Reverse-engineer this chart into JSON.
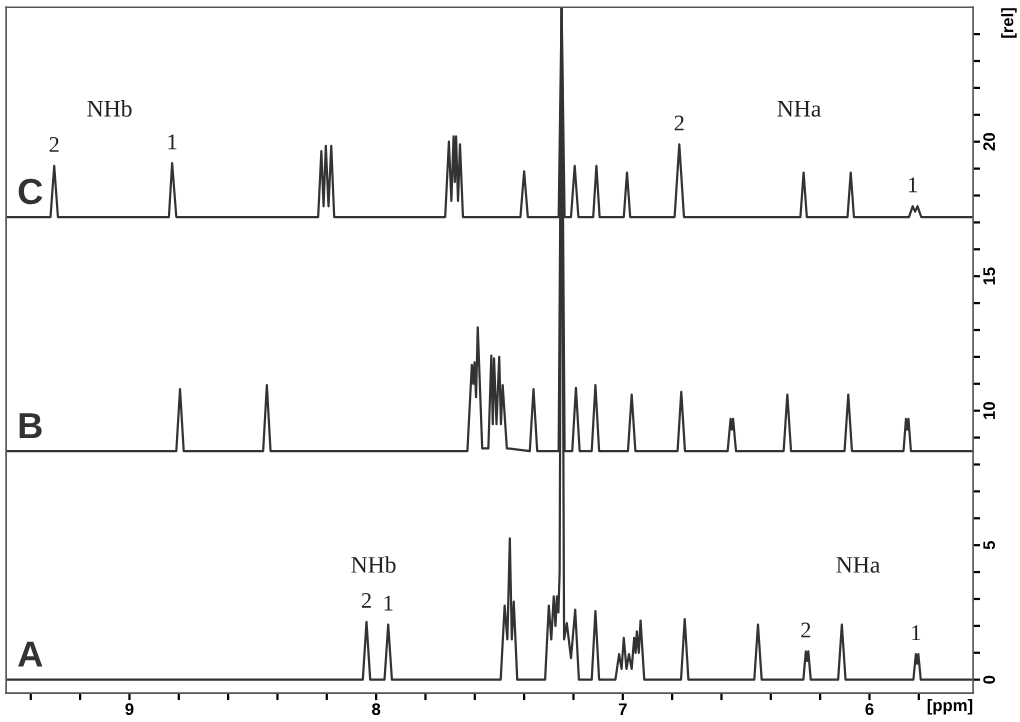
{
  "chart_data": {
    "type": "line",
    "xlabel": "[ppm]",
    "ylabel": "[rel]",
    "xlim": [
      9.5,
      5.58
    ],
    "ylim": [
      -0.5,
      25
    ],
    "xticks": [
      {
        "value": 9.4,
        "label": null
      },
      {
        "value": 9.2,
        "label": null
      },
      9,
      {
        "value": 8.8,
        "label": null
      },
      {
        "value": 8.6,
        "label": null
      },
      {
        "value": 8.4,
        "label": null
      },
      {
        "value": 8.2,
        "label": null
      },
      8,
      {
        "value": 7.8,
        "label": null
      },
      {
        "value": 7.6,
        "label": null
      },
      {
        "value": 7.4,
        "label": null
      },
      {
        "value": 7.2,
        "label": null
      },
      7,
      {
        "value": 6.8,
        "label": null
      },
      {
        "value": 6.6,
        "label": null
      },
      {
        "value": 6.4,
        "label": null
      },
      {
        "value": 6.2,
        "label": null
      },
      6,
      {
        "value": 5.8,
        "label": null
      }
    ],
    "yticks": [
      0,
      {
        "value": 1,
        "label": null
      },
      {
        "value": 2,
        "label": null
      },
      {
        "value": 3,
        "label": null
      },
      {
        "value": 4,
        "label": null
      },
      5,
      {
        "value": 6,
        "label": null
      },
      {
        "value": 7,
        "label": null
      },
      {
        "value": 8,
        "label": null
      },
      {
        "value": 9,
        "label": null
      },
      10,
      {
        "value": 11,
        "label": null
      },
      {
        "value": 12,
        "label": null
      },
      {
        "value": 13,
        "label": null
      },
      {
        "value": 14,
        "label": null
      },
      15,
      {
        "value": 16,
        "label": null
      },
      {
        "value": 17,
        "label": null
      },
      {
        "value": 18,
        "label": null
      },
      {
        "value": 19,
        "label": null
      },
      20,
      {
        "value": 21,
        "label": null
      },
      {
        "value": 22,
        "label": null
      },
      {
        "value": 23,
        "label": null
      },
      {
        "value": 24,
        "label": null
      }
    ],
    "grid": false,
    "legend": false,
    "marker": "none",
    "line_style": "solid",
    "series": [
      {
        "name": "C",
        "color": "#333333",
        "x": [
          9.5,
          9.32,
          9.305,
          9.29,
          8.84,
          8.827,
          8.81,
          8.235,
          8.222,
          8.213,
          8.204,
          8.193,
          8.182,
          8.17,
          7.72,
          7.705,
          7.695,
          7.686,
          7.681,
          7.676,
          7.668,
          7.66,
          7.648,
          7.415,
          7.4,
          7.385,
          7.26,
          7.248,
          7.236,
          7.21,
          7.195,
          7.18,
          7.12,
          7.107,
          7.094,
          6.996,
          6.983,
          6.97,
          6.79,
          6.771,
          6.752,
          6.28,
          6.267,
          6.254,
          6.089,
          6.076,
          6.063,
          5.84,
          5.825,
          5.815,
          5.805,
          5.79,
          5.58
        ],
        "values": [
          17.2,
          17.2,
          19.1,
          17.2,
          17.2,
          19.2,
          17.2,
          17.2,
          19.65,
          17.6,
          19.85,
          17.6,
          19.85,
          17.2,
          17.2,
          20.0,
          17.8,
          20.2,
          18.5,
          20.2,
          17.8,
          19.9,
          17.2,
          17.2,
          18.9,
          17.2,
          17.2,
          25,
          17.2,
          17.2,
          19.1,
          17.2,
          17.2,
          19.1,
          17.2,
          17.2,
          18.85,
          17.2,
          17.2,
          19.9,
          17.2,
          17.2,
          18.85,
          17.2,
          17.2,
          18.85,
          17.2,
          17.2,
          17.6,
          17.4,
          17.6,
          17.2,
          17.2
        ]
      },
      {
        "name": "B",
        "color": "#333333",
        "x": [
          9.5,
          8.81,
          8.795,
          8.78,
          8.458,
          8.443,
          8.428,
          7.63,
          7.612,
          7.606,
          7.601,
          7.595,
          7.588,
          7.57,
          7.545,
          7.533,
          7.527,
          7.522,
          7.512,
          7.501,
          7.494,
          7.487,
          7.47,
          7.377,
          7.362,
          7.347,
          7.26,
          7.248,
          7.236,
          7.205,
          7.19,
          7.175,
          7.126,
          7.111,
          7.096,
          6.979,
          6.964,
          6.949,
          6.778,
          6.763,
          6.748,
          6.575,
          6.563,
          6.558,
          6.553,
          6.541,
          6.348,
          6.333,
          6.318,
          6.101,
          6.086,
          6.071,
          5.862,
          5.852,
          5.847,
          5.842,
          5.832,
          5.58
        ],
        "values": [
          8.5,
          8.5,
          10.8,
          8.5,
          8.5,
          10.95,
          8.5,
          8.5,
          11.7,
          11.0,
          11.8,
          10.5,
          13.1,
          8.6,
          8.6,
          12.05,
          9.5,
          11.95,
          9.5,
          12.0,
          9.5,
          10.95,
          8.6,
          8.5,
          10.8,
          8.5,
          8.5,
          25,
          8.5,
          8.5,
          10.85,
          8.5,
          8.5,
          10.95,
          8.5,
          8.5,
          10.6,
          8.5,
          8.5,
          10.7,
          8.5,
          8.5,
          9.7,
          9.3,
          9.7,
          8.5,
          8.5,
          10.6,
          8.5,
          8.5,
          10.6,
          8.5,
          8.5,
          9.7,
          9.3,
          9.7,
          8.5,
          8.5
        ]
      },
      {
        "name": "A",
        "color": "#333333",
        "x": [
          9.5,
          8.054,
          8.039,
          8.024,
          7.966,
          7.951,
          7.936,
          7.495,
          7.479,
          7.468,
          7.458,
          7.45,
          7.442,
          7.428,
          7.315,
          7.3,
          7.29,
          7.28,
          7.273,
          7.267,
          7.261,
          7.256,
          7.248,
          7.238,
          7.227,
          7.21,
          7.193,
          7.178,
          7.126,
          7.111,
          7.096,
          7.03,
          7.015,
          7.005,
          6.996,
          6.985,
          6.975,
          6.964,
          6.954,
          6.948,
          6.943,
          6.935,
          6.928,
          6.913,
          6.764,
          6.749,
          6.734,
          6.467,
          6.452,
          6.437,
          6.268,
          6.258,
          6.253,
          6.248,
          6.238,
          6.127,
          6.112,
          6.097,
          5.822,
          5.812,
          5.807,
          5.802,
          5.792,
          5.58
        ],
        "values": [
          0,
          0,
          2.15,
          0,
          0,
          2.05,
          0,
          0,
          2.75,
          1.5,
          5.25,
          1.5,
          2.9,
          0,
          0,
          2.75,
          1.5,
          3.1,
          2.0,
          3.1,
          2.5,
          4.0,
          25,
          1.5,
          2.1,
          0.8,
          2.6,
          0,
          0,
          2.55,
          0,
          0,
          0.95,
          0.4,
          1.55,
          0.4,
          0.95,
          0.4,
          1.55,
          1.0,
          1.8,
          1.0,
          2.2,
          0,
          0,
          2.25,
          0,
          0,
          2.05,
          0,
          0,
          1.05,
          0.7,
          1.05,
          0,
          0,
          2.05,
          0,
          0,
          0.95,
          0.6,
          0.95,
          0,
          0
        ]
      }
    ],
    "annotations": [
      "NHb",
      "NHa",
      "NHb",
      "NHa",
      {
        "text": "2",
        "x": 9.305,
        "y": 19.1
      },
      {
        "text": "1",
        "x": 8.827,
        "y": 19.2
      },
      {
        "text": "2",
        "x": 6.771,
        "y": 19.9
      },
      {
        "text": "1",
        "x": 5.825,
        "y": 17.6
      },
      {
        "text": "2",
        "x": 8.039,
        "y": 2.15
      },
      {
        "text": "1",
        "x": 7.951,
        "y": 2.05
      },
      {
        "text": "2",
        "x": 6.258,
        "y": 1.05
      },
      {
        "text": "1",
        "x": 5.812,
        "y": 0.95
      }
    ]
  }
}
